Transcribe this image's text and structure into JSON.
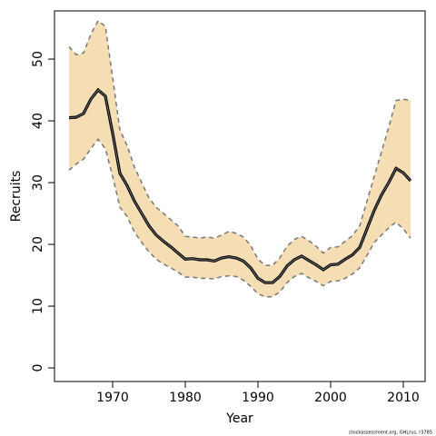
{
  "chart_data": {
    "type": "line",
    "xlabel": "Year",
    "ylabel": "Recruits",
    "footnote": "stockassessment.org, GHLrus, r3785",
    "x": [
      1964,
      1965,
      1966,
      1967,
      1968,
      1969,
      1970,
      1971,
      1972,
      1973,
      1974,
      1975,
      1976,
      1977,
      1978,
      1979,
      1980,
      1981,
      1982,
      1983,
      1984,
      1985,
      1986,
      1987,
      1988,
      1989,
      1990,
      1991,
      1992,
      1993,
      1994,
      1995,
      1996,
      1997,
      1998,
      1999,
      2000,
      2001,
      2002,
      2003,
      2004,
      2005,
      2006,
      2007,
      2008,
      2009,
      2010,
      2011
    ],
    "values": [
      40.5,
      40.6,
      41.2,
      43.5,
      45,
      44,
      38,
      31.5,
      29.5,
      27,
      25,
      23,
      21.5,
      20.5,
      19.6,
      18.6,
      17.6,
      17.7,
      17.5,
      17.5,
      17.3,
      17.8,
      18,
      17.8,
      17.3,
      16.2,
      14.5,
      13.8,
      13.8,
      14.8,
      16.5,
      17.5,
      18.1,
      17.4,
      16.7,
      15.9,
      16.7,
      16.8,
      17.6,
      18.3,
      19.5,
      22.5,
      25.5,
      28,
      30,
      32.3,
      31.6,
      30.3
    ],
    "upper": [
      52,
      50.7,
      51,
      54,
      56.2,
      55.3,
      47,
      38.5,
      36,
      32.5,
      30,
      27.5,
      26,
      25,
      24,
      23,
      21.3,
      21.2,
      21,
      21.2,
      21,
      21.5,
      22.1,
      21.8,
      21.2,
      19.8,
      17.6,
      16.6,
      16.6,
      17.8,
      19.7,
      20.8,
      21.3,
      20.6,
      19.7,
      18.6,
      19.5,
      19.6,
      20.5,
      21.4,
      23,
      27,
      31,
      35,
      39,
      43.3,
      43.5,
      43.3
    ],
    "lower": [
      32,
      33,
      33.8,
      35.5,
      37,
      35.5,
      31,
      26,
      24.5,
      22,
      20.3,
      18.8,
      17.6,
      16.8,
      16.2,
      15.5,
      14.7,
      14.7,
      14.5,
      14.5,
      14.4,
      14.8,
      14.9,
      14.8,
      14.2,
      13.2,
      12,
      11.5,
      11.5,
      12.3,
      13.8,
      14.8,
      15.3,
      14.6,
      14,
      13.3,
      14,
      14.1,
      14.5,
      15.2,
      16.2,
      18.2,
      20.3,
      21.5,
      22.7,
      23.6,
      22.5,
      21
    ],
    "color": "#000000",
    "band_color": "#f5deb3",
    "bound_color": "#777777",
    "xlim": [
      1962,
      2013
    ],
    "xticks": [
      1970,
      1980,
      1990,
      2000,
      2010
    ],
    "ylim": [
      -2.2,
      57.8
    ],
    "yticks": [
      0,
      10,
      20,
      30,
      40,
      50
    ]
  }
}
